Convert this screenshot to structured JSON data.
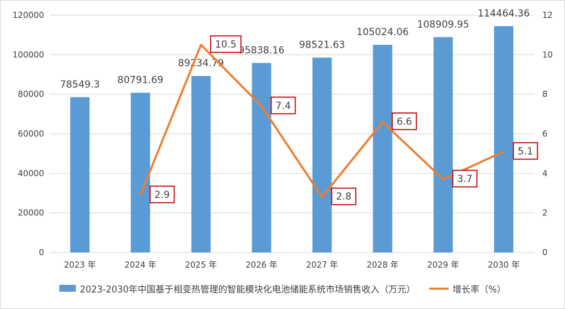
{
  "chart_data": {
    "type": "bar+line",
    "categories": [
      "2023 年",
      "2024 年",
      "2025 年",
      "2026 年",
      "2027 年",
      "2028 年",
      "2029 年",
      "2030 年"
    ],
    "series": [
      {
        "name": "2023-2030年中国基于相变热管理的智能模块化电池储能系统市场销售收入（万元）",
        "type": "bar",
        "axis": "left",
        "values": [
          78549.3,
          80791.69,
          89234.79,
          95838.16,
          98521.63,
          105024.06,
          108909.95,
          114464.36
        ],
        "labels": [
          "78549.3",
          "80791.69",
          "89234.79",
          "95838.16",
          "98521.63",
          "105024.06",
          "108909.95",
          "114464.36"
        ]
      },
      {
        "name": "增长率（%）",
        "type": "line",
        "axis": "right",
        "values": [
          null,
          2.9,
          10.5,
          7.4,
          2.8,
          6.6,
          3.7,
          5.1
        ],
        "labels": [
          "",
          "2.9",
          "10.5",
          "7.4",
          "2.8",
          "6.6",
          "3.7",
          "5.1"
        ]
      }
    ],
    "y_left": {
      "min": 0,
      "max": 120000,
      "ticks": [
        "0",
        "20000",
        "40000",
        "60000",
        "80000",
        "100000",
        "120000"
      ]
    },
    "y_right": {
      "min": 0,
      "max": 12,
      "ticks": [
        "0",
        "2",
        "4",
        "6",
        "8",
        "10",
        "12"
      ]
    },
    "colors": {
      "bar": "#5b9bd5",
      "line": "#ed7d31",
      "label_box": "#c00000",
      "grid": "#d9d9d9",
      "text": "#404040"
    },
    "grid": true,
    "legend_position": "bottom"
  }
}
